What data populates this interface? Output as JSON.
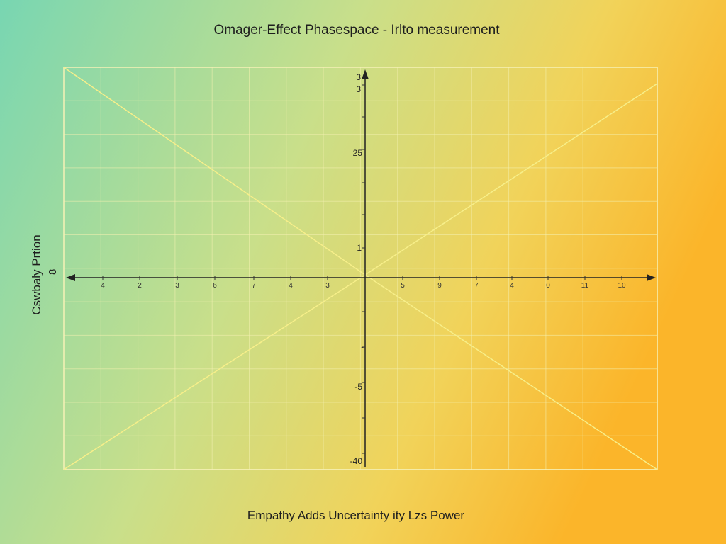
{
  "title": "Omager-Effect Phasespace - Irlto measurement",
  "footer": "Empathy Adds Uncertainty ity Lzs Power",
  "y_axis_label": [
    "Cswbaly Prtion",
    "8"
  ],
  "y_tick_labels": [
    "3",
    "3",
    "25",
    "1",
    "-",
    "-5",
    "-40"
  ],
  "x_tick_labels": [
    "4",
    "2",
    "3",
    "6",
    "7",
    "4",
    "3",
    "5",
    "9",
    "7",
    "4",
    "0",
    "11",
    "10"
  ]
}
